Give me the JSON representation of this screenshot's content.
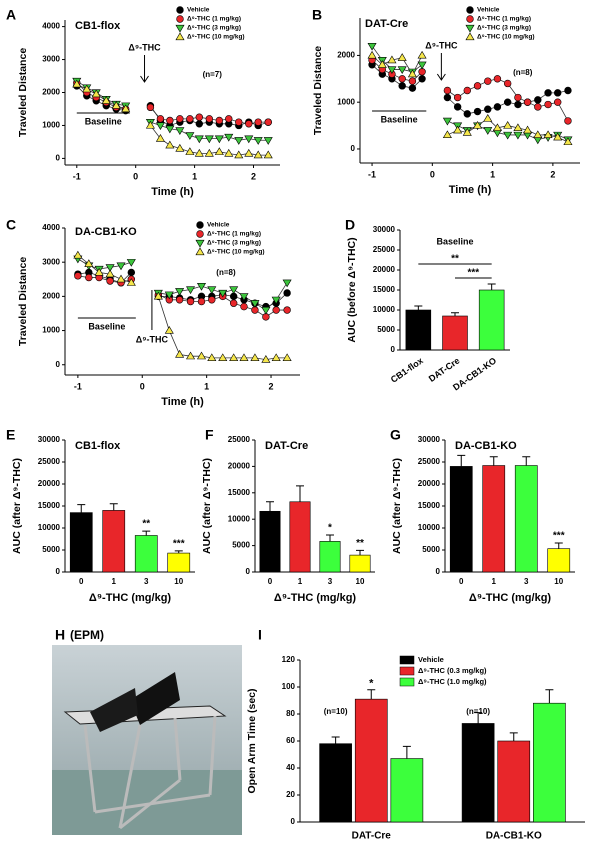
{
  "chart_data": [
    {
      "type": "line",
      "label": "A",
      "title": "CB1-flox",
      "ylabel": "Traveled Distance",
      "xlabel": "Time (h)",
      "injection_label": "Δ⁹-THC",
      "baseline_label": "Baseline",
      "n_label": "(n=7)",
      "x": [
        -1,
        -0.83,
        -0.67,
        -0.5,
        -0.33,
        -0.17,
        0.08,
        0.25,
        0.42,
        0.58,
        0.75,
        0.92,
        1.08,
        1.25,
        1.42,
        1.58,
        1.75,
        1.92,
        2.08,
        2.25
      ],
      "xlim": [
        -1.2,
        2.45
      ],
      "xticks": [
        -1,
        0,
        1,
        2
      ],
      "ylim": [
        -200,
        4200
      ],
      "yticks": [
        0,
        1000,
        2000,
        3000,
        4000
      ],
      "series": [
        {
          "name": "Vehicle",
          "color": "#000000",
          "marker": "circle",
          "values": [
            2200,
            1900,
            1750,
            1600,
            1500,
            1450,
            null,
            1600,
            1150,
            1000,
            1100,
            1150,
            1050,
            1100,
            1050,
            1050,
            1000,
            1100,
            1000,
            1100
          ]
        },
        {
          "name": "Δ⁹-THC (1 mg/kg)",
          "color": "#e8262a",
          "marker": "circle",
          "values": [
            2300,
            2000,
            1850,
            1700,
            1550,
            1500,
            null,
            1550,
            1200,
            1150,
            1200,
            1200,
            1250,
            1200,
            1150,
            1200,
            1100,
            1050,
            1100,
            1100
          ]
        },
        {
          "name": "Δ⁹-THC (3 mg/kg)",
          "color": "#3cc43c",
          "marker": "triangle-down",
          "values": [
            2350,
            2150,
            2000,
            1800,
            1650,
            1600,
            null,
            1100,
            1000,
            900,
            850,
            700,
            600,
            600,
            600,
            650,
            550,
            600,
            550,
            550
          ]
        },
        {
          "name": "Δ⁹-THC (10 mg/kg)",
          "color": "#f5e64b",
          "marker": "triangle-up",
          "values": [
            2250,
            2100,
            1950,
            1750,
            1600,
            1500,
            null,
            1000,
            600,
            400,
            300,
            200,
            150,
            150,
            200,
            150,
            100,
            150,
            100,
            100
          ]
        }
      ]
    },
    {
      "type": "line",
      "label": "B",
      "title": "DAT-Cre",
      "ylabel": "Traveled Distance",
      "xlabel": "Time (h)",
      "injection_label": "Δ⁹-THC",
      "baseline_label": "Baseline",
      "n_label": "(n=8)",
      "x": [
        -1,
        -0.83,
        -0.67,
        -0.5,
        -0.33,
        -0.17,
        0.08,
        0.25,
        0.42,
        0.58,
        0.75,
        0.92,
        1.08,
        1.25,
        1.42,
        1.58,
        1.75,
        1.92,
        2.08,
        2.25
      ],
      "xlim": [
        -1.2,
        2.45
      ],
      "xticks": [
        -1,
        0,
        1,
        2
      ],
      "ylim": [
        -300,
        2800
      ],
      "yticks": [
        0,
        1000,
        2000
      ],
      "series": [
        {
          "name": "Vehicle",
          "color": "#000000",
          "marker": "circle",
          "values": [
            1800,
            1600,
            1500,
            1350,
            1300,
            1500,
            null,
            1100,
            900,
            750,
            800,
            850,
            900,
            1000,
            950,
            1000,
            1050,
            1200,
            1200,
            1250
          ]
        },
        {
          "name": "Δ⁹-THC (1 mg/kg)",
          "color": "#e8262a",
          "marker": "circle",
          "values": [
            1900,
            1700,
            1600,
            1500,
            1450,
            1650,
            null,
            1250,
            1100,
            1250,
            1350,
            1450,
            1500,
            1400,
            1100,
            1000,
            900,
            950,
            1000,
            600
          ]
        },
        {
          "name": "Δ⁹-THC (3 mg/kg)",
          "color": "#3cc43c",
          "marker": "triangle-down",
          "values": [
            2200,
            1900,
            1700,
            1700,
            1650,
            1800,
            null,
            600,
            500,
            400,
            500,
            400,
            350,
            300,
            300,
            300,
            200,
            250,
            300,
            200
          ]
        },
        {
          "name": "Δ⁹-THC (10 mg/kg)",
          "color": "#f5e64b",
          "marker": "triangle-up",
          "values": [
            2000,
            1800,
            1900,
            1950,
            1600,
            2000,
            null,
            300,
            400,
            350,
            500,
            650,
            450,
            500,
            450,
            400,
            300,
            300,
            250,
            150
          ]
        }
      ]
    },
    {
      "type": "line",
      "label": "C",
      "title": "DA-CB1-KO",
      "ylabel": "Traveled Distance",
      "xlabel": "Time (h)",
      "injection_label": "Δ⁹-THC",
      "baseline_label": "Baseline",
      "n_label": "(n=8)",
      "x": [
        -1,
        -0.83,
        -0.67,
        -0.5,
        -0.33,
        -0.17,
        0.08,
        0.25,
        0.42,
        0.58,
        0.75,
        0.92,
        1.08,
        1.25,
        1.42,
        1.58,
        1.75,
        1.92,
        2.08,
        2.25
      ],
      "xlim": [
        -1.2,
        2.45
      ],
      "xticks": [
        -1,
        0,
        1,
        2
      ],
      "ylim": [
        -300,
        4000
      ],
      "yticks": [
        0,
        1000,
        2000,
        3000,
        4000
      ],
      "series": [
        {
          "name": "Vehicle",
          "color": "#000000",
          "marker": "circle",
          "values": [
            2650,
            2700,
            2600,
            2500,
            2400,
            2700,
            null,
            2000,
            2000,
            1950,
            1900,
            2000,
            2000,
            2050,
            2000,
            1900,
            1800,
            1700,
            1800,
            2100
          ]
        },
        {
          "name": "Δ⁹-THC (1 mg/kg)",
          "color": "#e8262a",
          "marker": "circle",
          "values": [
            2600,
            2550,
            2550,
            2450,
            2400,
            2500,
            null,
            2050,
            1900,
            1900,
            1850,
            1850,
            1900,
            2000,
            1800,
            1700,
            1600,
            1400,
            1600,
            1600
          ]
        },
        {
          "name": "Δ⁹-THC (3 mg/kg)",
          "color": "#3cc43c",
          "marker": "triangle-down",
          "values": [
            3100,
            2900,
            2800,
            2850,
            2900,
            3000,
            null,
            2100,
            2050,
            2150,
            2200,
            2300,
            2200,
            2100,
            2200,
            2000,
            1800,
            1600,
            1900,
            2400
          ]
        },
        {
          "name": "Δ⁹-THC (10 mg/kg)",
          "color": "#f5e64b",
          "marker": "triangle-up",
          "values": [
            3200,
            2950,
            2700,
            2650,
            2500,
            2400,
            null,
            2000,
            1000,
            300,
            250,
            250,
            200,
            200,
            200,
            200,
            200,
            150,
            200,
            200
          ]
        }
      ]
    },
    {
      "type": "bar",
      "label": "D",
      "subtitle": "Baseline",
      "ylabel": "AUC (before Δ⁹-THC)",
      "categories": [
        "CB1-flox",
        "DAT-Cre",
        "DA-CB1-KO"
      ],
      "values": [
        10000,
        8500,
        15000
      ],
      "errors": [
        1000,
        800,
        1500
      ],
      "colors": [
        "#000000",
        "#e8262a",
        "#3cff3c"
      ],
      "ylim": [
        0,
        30000
      ],
      "yticks": [
        0,
        5000,
        10000,
        15000,
        20000,
        25000,
        30000
      ],
      "comparisons": [
        {
          "text": "**",
          "from": "CB1-flox",
          "to": "DA-CB1-KO"
        },
        {
          "text": "***",
          "from": "DAT-Cre",
          "to": "DA-CB1-KO"
        }
      ]
    },
    {
      "type": "bar",
      "label": "E",
      "title": "CB1-flox",
      "ylabel": "AUC (after Δ⁹-THC)",
      "xlabel": "Δ⁹-THC (mg/kg)",
      "categories": [
        "0",
        "1",
        "3",
        "10"
      ],
      "values": [
        13500,
        14000,
        8300,
        4300
      ],
      "errors": [
        1800,
        1500,
        1000,
        500
      ],
      "colors": [
        "#000000",
        "#e8262a",
        "#3cff3c",
        "#ffff00"
      ],
      "ylim": [
        0,
        30000
      ],
      "yticks": [
        0,
        5000,
        10000,
        15000,
        20000,
        25000,
        30000
      ],
      "annotations": [
        {
          "text": "**",
          "category": "3"
        },
        {
          "text": "***",
          "category": "10"
        }
      ]
    },
    {
      "type": "bar",
      "label": "F",
      "title": "DAT-Cre",
      "ylabel": "AUC (after Δ⁹-THC)",
      "xlabel": "Δ⁹-THC (mg/kg)",
      "categories": [
        "0",
        "1",
        "3",
        "10"
      ],
      "values": [
        11500,
        13300,
        5800,
        3200
      ],
      "errors": [
        1800,
        3000,
        1200,
        900
      ],
      "colors": [
        "#000000",
        "#e8262a",
        "#3cff3c",
        "#ffff00"
      ],
      "ylim": [
        0,
        25000
      ],
      "yticks": [
        0,
        5000,
        10000,
        15000,
        20000,
        25000
      ],
      "annotations": [
        {
          "text": "*",
          "category": "3"
        },
        {
          "text": "**",
          "category": "10"
        }
      ]
    },
    {
      "type": "bar",
      "label": "G",
      "title": "DA-CB1-KO",
      "ylabel": "AUC (after Δ⁹-THC)",
      "xlabel": "Δ⁹-THC (mg/kg)",
      "categories": [
        "0",
        "1",
        "3",
        "10"
      ],
      "values": [
        24000,
        24200,
        24200,
        5300
      ],
      "errors": [
        2500,
        2000,
        2000,
        1300
      ],
      "colors": [
        "#000000",
        "#e8262a",
        "#3cff3c",
        "#ffff00"
      ],
      "ylim": [
        0,
        30000
      ],
      "yticks": [
        0,
        5000,
        10000,
        15000,
        20000,
        25000,
        30000
      ],
      "annotations": [
        {
          "text": "***",
          "category": "10"
        }
      ]
    },
    {
      "type": "grouped-bar",
      "label": "I",
      "ylabel": "Open Arm Time (sec)",
      "categories": [
        "DAT-Cre",
        "DA-CB1-KO"
      ],
      "ylim": [
        0,
        120
      ],
      "yticks": [
        0,
        20,
        40,
        60,
        80,
        100,
        120
      ],
      "series": [
        {
          "name": "Vehicle",
          "color": "#000000",
          "values": [
            58,
            73
          ],
          "errors": [
            5,
            8
          ]
        },
        {
          "name": "Δ⁹-THC (0.3 mg/kg)",
          "color": "#e8262a",
          "values": [
            91,
            60
          ],
          "errors": [
            7,
            6
          ]
        },
        {
          "name": "Δ⁹-THC (1.0 mg/kg)",
          "color": "#3cff3c",
          "values": [
            47,
            88
          ],
          "errors": [
            9,
            10
          ]
        }
      ],
      "annotations": [
        {
          "text": "*",
          "category": "DAT-Cre",
          "series": "Δ⁹-THC (0.3 mg/kg)"
        },
        {
          "text": "(n=10)",
          "category": "DAT-Cre"
        },
        {
          "text": "(n=10)",
          "category": "DA-CB1-KO"
        }
      ]
    }
  ],
  "photo_panel": {
    "label": "H",
    "title": "(EPM)"
  }
}
